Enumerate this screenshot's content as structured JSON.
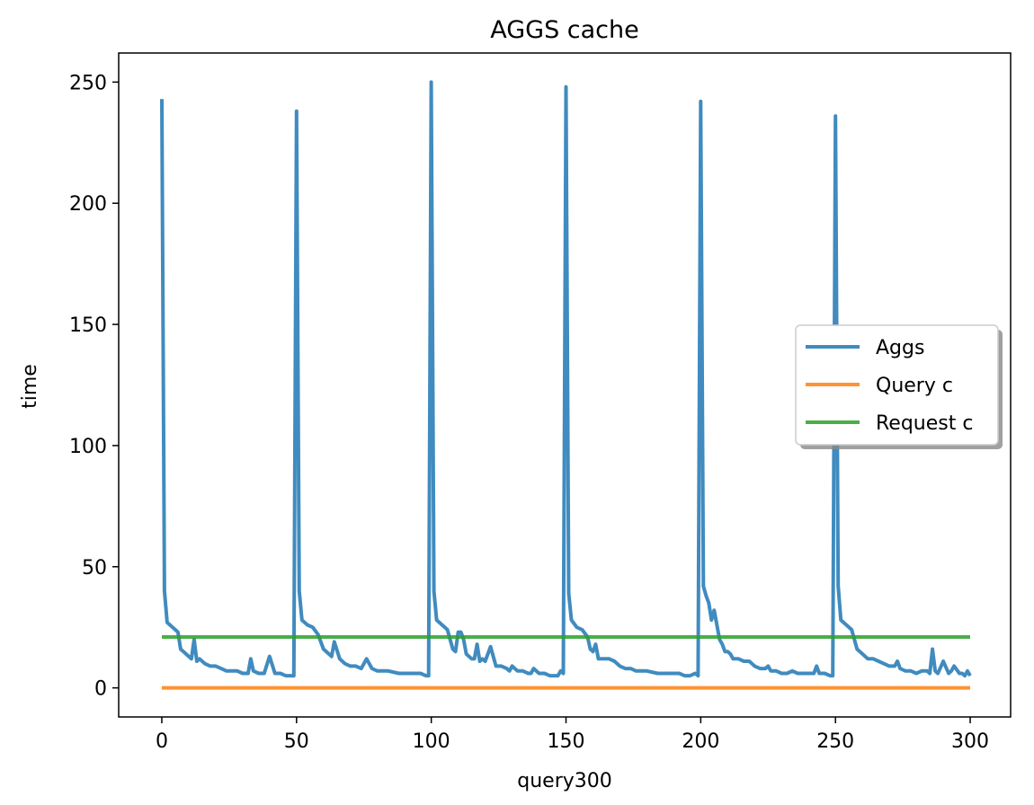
{
  "chart_data": {
    "type": "line",
    "title": "AGGS cache",
    "xlabel": "query300",
    "ylabel": "time",
    "xlim": [
      -16,
      315
    ],
    "ylim": [
      -12,
      262
    ],
    "xticks": [
      0,
      50,
      100,
      150,
      200,
      250,
      300
    ],
    "yticks": [
      0,
      50,
      100,
      150,
      200,
      250
    ],
    "legend_position": "center-right",
    "series": [
      {
        "name": "Aggs",
        "color": "#1f77b4",
        "x": [
          0,
          1,
          2,
          3,
          4,
          5,
          6,
          7,
          8,
          9,
          10,
          11,
          12,
          13,
          14,
          15,
          16,
          18,
          20,
          22,
          24,
          26,
          28,
          30,
          32,
          33,
          34,
          36,
          38,
          40,
          42,
          44,
          46,
          48,
          49,
          50,
          51,
          52,
          54,
          56,
          58,
          60,
          62,
          63,
          64,
          66,
          68,
          70,
          72,
          74,
          76,
          78,
          80,
          84,
          88,
          92,
          96,
          98,
          99,
          100,
          101,
          102,
          104,
          106,
          107,
          108,
          109,
          110,
          111,
          112,
          113,
          114,
          115,
          116,
          117,
          118,
          119,
          120,
          122,
          124,
          126,
          128,
          129,
          130,
          132,
          134,
          136,
          137,
          138,
          140,
          142,
          144,
          146,
          147,
          148,
          149,
          150,
          151,
          152,
          154,
          156,
          158,
          159,
          160,
          161,
          162,
          164,
          165,
          166,
          168,
          170,
          172,
          174,
          176,
          178,
          180,
          184,
          188,
          192,
          194,
          196,
          198,
          199,
          200,
          201,
          202,
          203,
          204,
          205,
          206,
          207,
          208,
          209,
          210,
          211,
          212,
          214,
          216,
          218,
          219,
          220,
          222,
          224,
          225,
          226,
          228,
          230,
          232,
          234,
          236,
          238,
          240,
          242,
          243,
          244,
          246,
          248,
          249,
          250,
          251,
          252,
          254,
          256,
          258,
          260,
          262,
          264,
          266,
          268,
          270,
          272,
          273,
          274,
          276,
          278,
          280,
          282,
          284,
          285,
          286,
          287,
          288,
          290,
          292,
          293,
          294,
          296,
          297,
          298,
          299,
          300
        ],
        "y": [
          243,
          40,
          27,
          26,
          25,
          24,
          23,
          16,
          15,
          14,
          13,
          12,
          20,
          11,
          12,
          11,
          10,
          9,
          9,
          8,
          7,
          7,
          7,
          6,
          6,
          12,
          7,
          6,
          6,
          13,
          6,
          6,
          5,
          5,
          5,
          238,
          40,
          28,
          26,
          25,
          22,
          16,
          14,
          13,
          19,
          12,
          10,
          9,
          9,
          8,
          12,
          8,
          7,
          7,
          6,
          6,
          6,
          5,
          5,
          250,
          40,
          28,
          26,
          24,
          20,
          16,
          15,
          23,
          23,
          20,
          14,
          13,
          12,
          12,
          18,
          11,
          12,
          11,
          17,
          9,
          9,
          8,
          7,
          9,
          7,
          7,
          6,
          6,
          8,
          6,
          6,
          5,
          5,
          5,
          7,
          6,
          248,
          39,
          28,
          25,
          24,
          21,
          16,
          15,
          18,
          12,
          12,
          12,
          12,
          11,
          9,
          8,
          8,
          7,
          7,
          7,
          6,
          6,
          6,
          5,
          5,
          6,
          5,
          242,
          42,
          38,
          35,
          28,
          32,
          26,
          20,
          18,
          15,
          15,
          14,
          12,
          12,
          11,
          11,
          10,
          9,
          8,
          8,
          9,
          7,
          7,
          6,
          6,
          7,
          6,
          6,
          6,
          6,
          9,
          6,
          6,
          5,
          5,
          236,
          42,
          28,
          26,
          24,
          16,
          14,
          12,
          12,
          11,
          10,
          9,
          9,
          11,
          8,
          7,
          7,
          6,
          7,
          7,
          6,
          16,
          7,
          6,
          11,
          6,
          7,
          9,
          6,
          6,
          5,
          7,
          5
        ]
      },
      {
        "name": "Query c",
        "color": "#ff7f0e",
        "x": [
          0,
          300
        ],
        "y": [
          0,
          0
        ]
      },
      {
        "name": "Request c",
        "color": "#2ca02c",
        "x": [
          0,
          300
        ],
        "y": [
          21,
          21
        ]
      }
    ]
  }
}
